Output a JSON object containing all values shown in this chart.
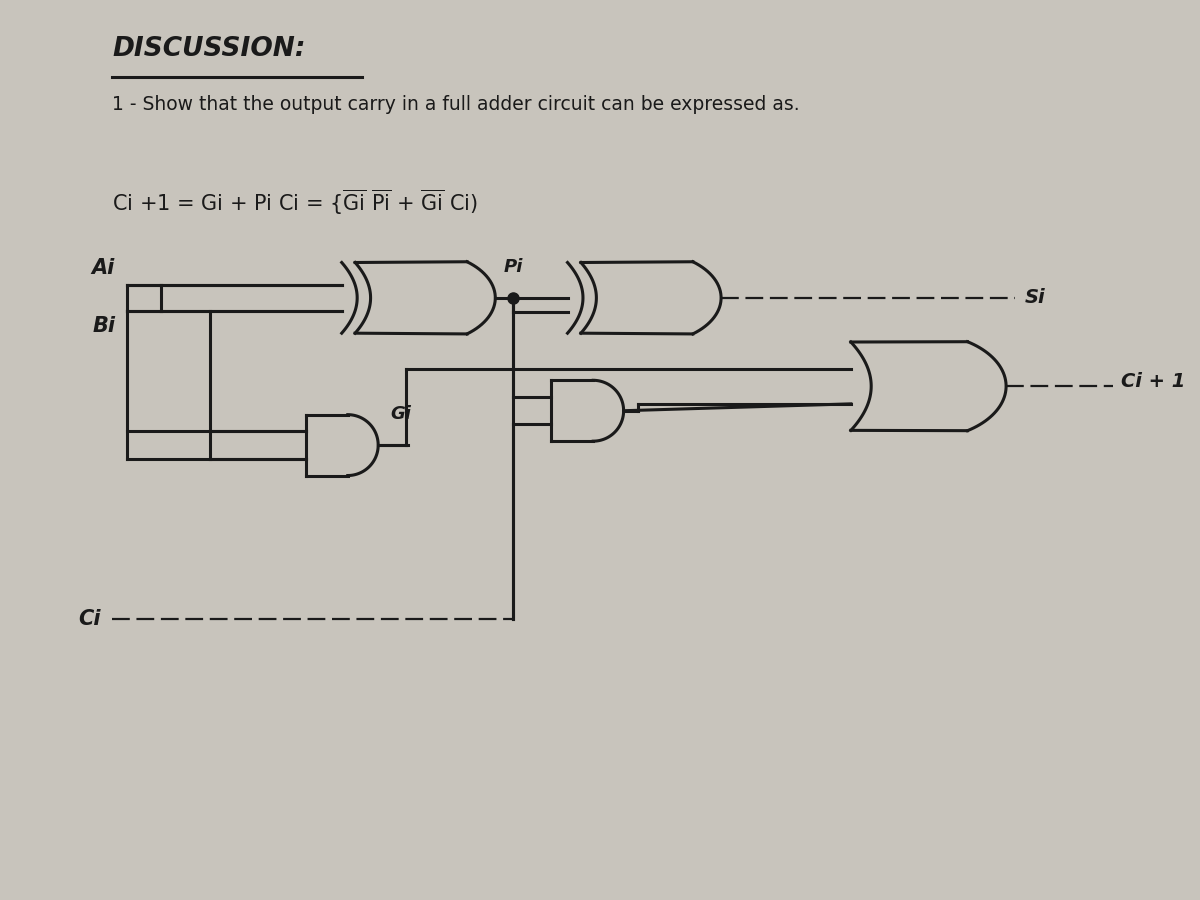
{
  "bg_color": "#c8c4bc",
  "page_color": "#ddd9d0",
  "line_color": "#1a1a1a",
  "text_color": "#1a1a1a",
  "title": "DISCUSSION:",
  "subtitle": "1 - Show that the output carry in a full adder circuit can be expressed as.",
  "label_Ai": "Ai",
  "label_Bi": "Bi",
  "label_Ci": "Ci",
  "label_Pi": "Pi",
  "label_Gi": "Gi",
  "label_Si": "Si",
  "label_Cout": "Ci + 1",
  "lw": 2.2,
  "lw_thin": 1.6
}
